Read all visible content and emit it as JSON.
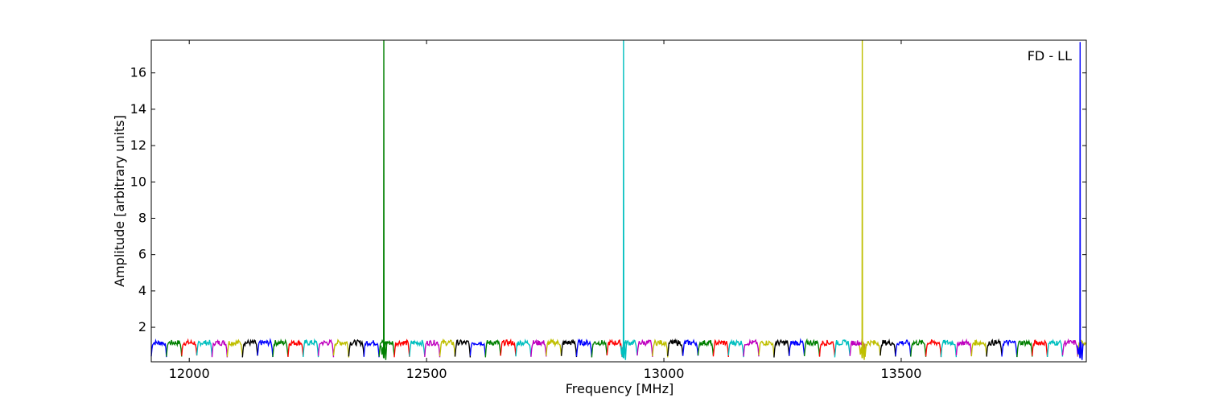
{
  "chart_data": {
    "type": "line",
    "title": "",
    "annotation": "FD - LL",
    "xlabel": "Frequency [MHz]",
    "ylabel": "Amplitude [arbitrary units]",
    "xlim": [
      11920,
      13890
    ],
    "ylim": [
      0.1,
      17.8
    ],
    "x_ticks": [
      12000,
      12500,
      13000,
      13500
    ],
    "y_ticks": [
      2,
      4,
      6,
      8,
      10,
      12,
      14,
      16
    ],
    "grid": false,
    "legend": "none",
    "band_colors": [
      "#0000ff",
      "#008000",
      "#ff0000",
      "#00bfbf",
      "#bf00bf",
      "#bfbf00",
      "#000000"
    ],
    "band_start": 11920,
    "band_width": 32,
    "band_dip_fraction": 0.12,
    "band_level": 1.15,
    "band_ripple": 0.15,
    "band_dip_level": 0.4,
    "spikes": [
      {
        "x": 12410,
        "peak": 17.8,
        "color": "#008000"
      },
      {
        "x": 12915,
        "peak": 17.8,
        "color": "#00bfbf"
      },
      {
        "x": 13418,
        "peak": 17.8,
        "color": "#bfbf00"
      },
      {
        "x": 13877,
        "peak": 17.7,
        "color": "#0000ff"
      }
    ]
  }
}
